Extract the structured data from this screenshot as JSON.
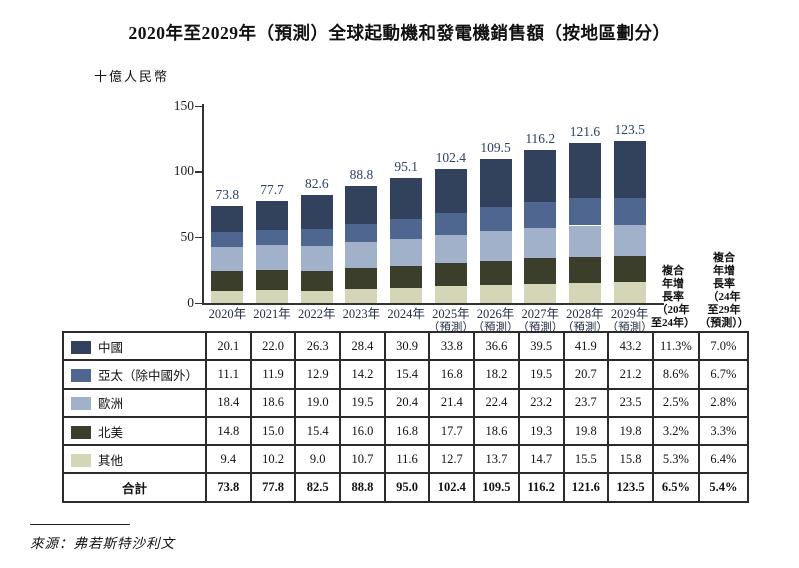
{
  "title": "2020年至2029年（預測）全球起動機和發電機銷售額（按地區劃分）",
  "unit_label": "十億人民幣",
  "source": "來源：弗若斯特沙利文",
  "colors": {
    "china": "#33425c",
    "apac": "#4f6790",
    "europe": "#a1b1ca",
    "north_america": "#3a3e2a",
    "other": "#d5d5b8",
    "value_label": "#2e4166",
    "axis": "#333333"
  },
  "cagr_headers": {
    "col1": "複合\n年增\n長率\n（20年\n至24年）",
    "col2": "複合\n年增\n長率\n（24年\n至29年\n（預測））"
  },
  "chart_data": {
    "type": "bar",
    "stacked": true,
    "title": "2020年至2029年（預測）全球起動機和發電機銷售額（按地區劃分）",
    "ylabel": "十億人民幣",
    "ylim": [
      0,
      150
    ],
    "yticks": [
      "0",
      "50",
      "100",
      "150"
    ],
    "grid": false,
    "legend_position": "table-left",
    "categories": [
      "2020年",
      "2021年",
      "2022年",
      "2023年",
      "2024年",
      "2025年",
      "2026年",
      "2027年",
      "2028年",
      "2029年"
    ],
    "forecast_suffix": "（預測）",
    "forecast_from_index": 5,
    "bar_total_labels": [
      "73.8",
      "77.7",
      "82.6",
      "88.8",
      "95.1",
      "102.4",
      "109.5",
      "116.2",
      "121.6",
      "123.5"
    ],
    "stack_order_bottom_to_top": [
      "其他",
      "北美",
      "歐洲",
      "亞太（除中國外）",
      "中國"
    ],
    "series": [
      {
        "name": "中國",
        "color": "#33425c",
        "values": [
          "20.1",
          "22.0",
          "26.3",
          "28.4",
          "30.9",
          "33.8",
          "36.6",
          "39.5",
          "41.9",
          "43.2"
        ],
        "cagr_20_24": "11.3%",
        "cagr_24_29": "7.0%"
      },
      {
        "name": "亞太（除中國外）",
        "color": "#4f6790",
        "values": [
          "11.1",
          "11.9",
          "12.9",
          "14.2",
          "15.4",
          "16.8",
          "18.2",
          "19.5",
          "20.7",
          "21.2"
        ],
        "cagr_20_24": "8.6%",
        "cagr_24_29": "6.7%"
      },
      {
        "name": "歐洲",
        "color": "#a1b1ca",
        "values": [
          "18.4",
          "18.6",
          "19.0",
          "19.5",
          "20.4",
          "21.4",
          "22.4",
          "23.2",
          "23.7",
          "23.5"
        ],
        "cagr_20_24": "2.5%",
        "cagr_24_29": "2.8%"
      },
      {
        "name": "北美",
        "color": "#3a3e2a",
        "values": [
          "14.8",
          "15.0",
          "15.4",
          "16.0",
          "16.8",
          "17.7",
          "18.6",
          "19.3",
          "19.8",
          "19.8"
        ],
        "cagr_20_24": "3.2%",
        "cagr_24_29": "3.3%"
      },
      {
        "name": "其他",
        "color": "#d5d5b8",
        "values": [
          "9.4",
          "10.2",
          "9.0",
          "10.7",
          "11.6",
          "12.7",
          "13.7",
          "14.7",
          "15.5",
          "15.8"
        ],
        "cagr_20_24": "5.3%",
        "cagr_24_29": "6.4%"
      }
    ],
    "total_row": {
      "label": "合計",
      "values": [
        "73.8",
        "77.8",
        "82.5",
        "88.8",
        "95.0",
        "102.4",
        "109.5",
        "116.2",
        "121.6",
        "123.5"
      ],
      "cagr_20_24": "6.5%",
      "cagr_24_29": "5.4%"
    }
  }
}
